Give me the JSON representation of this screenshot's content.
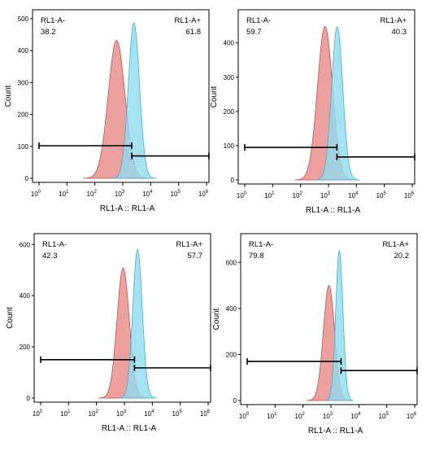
{
  "chart_data": [
    {
      "type": "histogram",
      "xlabel": "RL1-A :: RL1-A",
      "ylabel": "Count",
      "xscale": "log",
      "xlim": [
        1,
        1000000
      ],
      "x_ticks": [
        {
          "base": "10",
          "exp": "0"
        },
        {
          "base": "10",
          "exp": "1"
        },
        {
          "base": "10",
          "exp": "2"
        },
        {
          "base": "10",
          "exp": "3"
        },
        {
          "base": "10",
          "exp": "4"
        },
        {
          "base": "10",
          "exp": "5"
        },
        {
          "base": "10",
          "exp": "6"
        }
      ],
      "ylim": [
        0,
        510
      ],
      "yticks": [
        0,
        100,
        200,
        300,
        400,
        500
      ],
      "gates": [
        {
          "name": "RL1-A-",
          "value": "38.2",
          "range": [
            1,
            2100
          ],
          "level": 102
        },
        {
          "name": "RL1-A+",
          "value": "61.8",
          "range": [
            2100,
            1500000
          ],
          "level": 70
        }
      ],
      "series": [
        {
          "color": "#e98a86",
          "stroke": "#c0504d",
          "peak_x": 600,
          "peak_y": 432,
          "width_decades": 0.3
        },
        {
          "color": "#8fdcef",
          "stroke": "#3ab0d6",
          "peak_x": 2500,
          "peak_y": 487,
          "width_decades": 0.2
        }
      ]
    },
    {
      "type": "histogram",
      "xlabel": "RL1-A :: RL1-A",
      "ylabel": "Count",
      "xscale": "log",
      "xlim": [
        1,
        1000000
      ],
      "x_ticks": [
        {
          "base": "10",
          "exp": "0"
        },
        {
          "base": "10",
          "exp": "1"
        },
        {
          "base": "10",
          "exp": "2"
        },
        {
          "base": "10",
          "exp": "3"
        },
        {
          "base": "10",
          "exp": "4"
        },
        {
          "base": "10",
          "exp": "5"
        },
        {
          "base": "10",
          "exp": "6"
        }
      ],
      "ylim": [
        0,
        480
      ],
      "yticks": [
        0,
        100,
        200,
        300,
        400
      ],
      "gates": [
        {
          "name": "RL1-A-",
          "value": "59.7",
          "range": [
            1,
            2000
          ],
          "level": 95
        },
        {
          "name": "RL1-A+",
          "value": "40.3",
          "range": [
            2000,
            1500000
          ],
          "level": 67
        }
      ],
      "series": [
        {
          "color": "#e98a86",
          "stroke": "#c0504d",
          "peak_x": 750,
          "peak_y": 448,
          "width_decades": 0.27
        },
        {
          "color": "#8fdcef",
          "stroke": "#3ab0d6",
          "peak_x": 2050,
          "peak_y": 448,
          "width_decades": 0.2
        }
      ]
    },
    {
      "type": "histogram",
      "xlabel": "RL1-A :: RL1-A",
      "ylabel": "Count",
      "xscale": "log",
      "xlim": [
        1,
        1000000
      ],
      "x_ticks": [
        {
          "base": "10",
          "exp": "0"
        },
        {
          "base": "10",
          "exp": "1"
        },
        {
          "base": "10",
          "exp": "2"
        },
        {
          "base": "10",
          "exp": "3"
        },
        {
          "base": "10",
          "exp": "4"
        },
        {
          "base": "10",
          "exp": "5"
        },
        {
          "base": "10",
          "exp": "6"
        }
      ],
      "ylim": [
        0,
        620
      ],
      "yticks": [
        0,
        200,
        400,
        600
      ],
      "gates": [
        {
          "name": "RL1-A-",
          "value": "42.3",
          "range": [
            1,
            2300
          ],
          "level": 150
        },
        {
          "name": "RL1-A+",
          "value": "57.7",
          "range": [
            2300,
            1500000
          ],
          "level": 118
        }
      ],
      "series": [
        {
          "color": "#e98a86",
          "stroke": "#c0504d",
          "peak_x": 900,
          "peak_y": 508,
          "width_decades": 0.22
        },
        {
          "color": "#8fdcef",
          "stroke": "#3ab0d6",
          "peak_x": 2950,
          "peak_y": 580,
          "width_decades": 0.17
        }
      ]
    },
    {
      "type": "histogram",
      "xlabel": "RL1-A :: RL1-A",
      "ylabel": "Count",
      "xscale": "log",
      "xlim": [
        1,
        1000000
      ],
      "x_ticks": [
        {
          "base": "10",
          "exp": "0"
        },
        {
          "base": "10",
          "exp": "1"
        },
        {
          "base": "10",
          "exp": "2"
        },
        {
          "base": "10",
          "exp": "3"
        },
        {
          "base": "10",
          "exp": "4"
        },
        {
          "base": "10",
          "exp": "5"
        },
        {
          "base": "10",
          "exp": "6"
        }
      ],
      "ylim": [
        0,
        700
      ],
      "yticks": [
        0,
        200,
        400,
        600
      ],
      "gates": [
        {
          "name": "RL1-A-",
          "value": "79.8",
          "range": [
            1,
            2300
          ],
          "level": 170
        },
        {
          "name": "RL1-A+",
          "value": "20.2",
          "range": [
            2300,
            1500000
          ],
          "level": 130
        }
      ],
      "series": [
        {
          "color": "#e98a86",
          "stroke": "#c0504d",
          "peak_x": 850,
          "peak_y": 500,
          "width_decades": 0.2
        },
        {
          "color": "#8fdcef",
          "stroke": "#3ab0d6",
          "peak_x": 2000,
          "peak_y": 650,
          "width_decades": 0.13
        }
      ]
    }
  ]
}
